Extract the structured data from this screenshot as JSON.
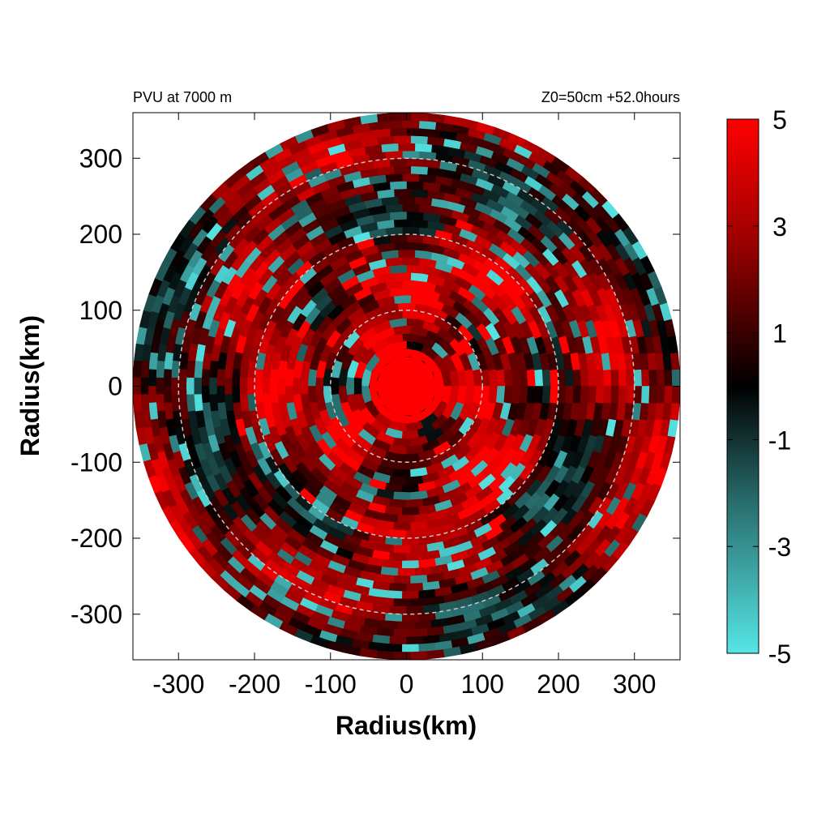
{
  "chart_data": {
    "type": "heatmap",
    "title_left": "PVU at  7000 m",
    "title_right": "Z0=50cm  +52.0hours",
    "xlabel": "Radius(km)",
    "ylabel": "Radius(km)",
    "xlim": [
      -360,
      360
    ],
    "ylim": [
      -360,
      360
    ],
    "xticks": [
      -300,
      -200,
      -100,
      0,
      100,
      200,
      300
    ],
    "yticks": [
      -300,
      -200,
      -100,
      0,
      100,
      200,
      300
    ],
    "xtick_labels": [
      "-300",
      "-200",
      "-100",
      "0",
      "100",
      "200",
      "300"
    ],
    "ytick_labels": [
      "300",
      "200",
      "100",
      "0",
      "-100",
      "-200",
      "-300"
    ],
    "domain_radius_km": 360,
    "range_rings_km": [
      100,
      200,
      300
    ],
    "colorbar": {
      "range": [
        -5,
        5
      ],
      "tick_values": [
        5,
        3,
        1,
        -1,
        -3,
        -5
      ],
      "tick_labels": [
        "5",
        "3",
        "1",
        "-1",
        "-3",
        "-5"
      ],
      "colors": {
        "max": "#ff0000",
        "upper_mid": "#8b0000",
        "zero": "#000000",
        "lower_mid": "#2a6e6e",
        "min": "#55e5e5"
      }
    },
    "ring_color": "#c8c8c8"
  }
}
